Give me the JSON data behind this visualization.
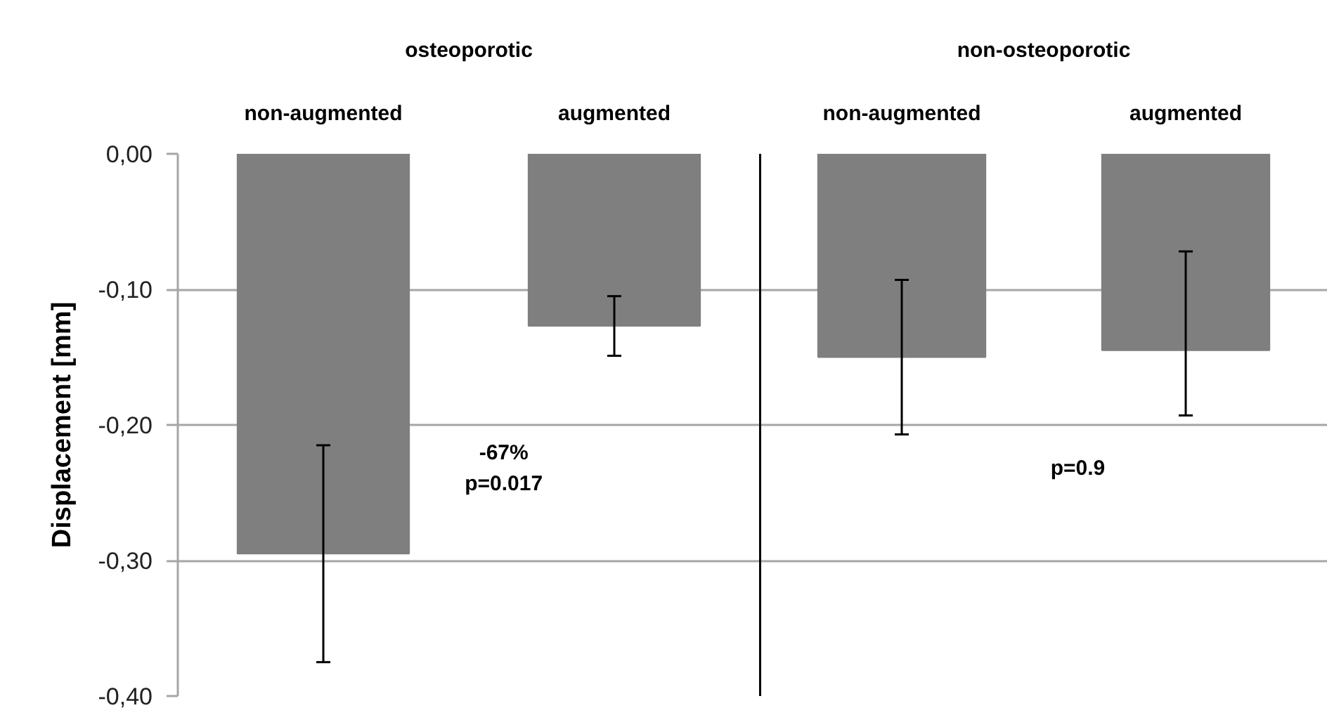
{
  "chart_data": [
    {
      "type": "bar",
      "title": "osteoporotic",
      "categories": [
        "non-augmented",
        "augmented"
      ],
      "values": [
        -0.295,
        -0.127
      ],
      "errors": [
        0.08,
        0.022
      ],
      "color": "#7f7f7f",
      "ylabel": "Displacement [mm]",
      "ylim": [
        -0.4,
        0
      ],
      "yticks": [
        {
          "value": 0,
          "label": "0,00"
        },
        {
          "value": -0.1,
          "label": "-0,10"
        },
        {
          "value": -0.2,
          "label": "-0,20"
        },
        {
          "value": -0.3,
          "label": "-0,30"
        },
        {
          "value": -0.4,
          "label": "-0,40"
        }
      ],
      "grid": "y",
      "annotations": [
        "-67%\np=0.017"
      ]
    },
    {
      "type": "bar",
      "title": "non-osteoporotic",
      "categories": [
        "non-augmented",
        "augmented"
      ],
      "values": [
        -0.15,
        -0.145
      ],
      "errors": [
        0.057,
        [
          -0.193,
          -0.072
        ]
      ],
      "color": "#7f7f7f",
      "ylim": [
        -0.4,
        0
      ],
      "yticks": [
        0,
        -0.1,
        -0.2,
        -0.3,
        -0.4
      ],
      "grid": "y",
      "tick_labels": "x",
      "annotations": [
        "p=0.9"
      ]
    }
  ]
}
